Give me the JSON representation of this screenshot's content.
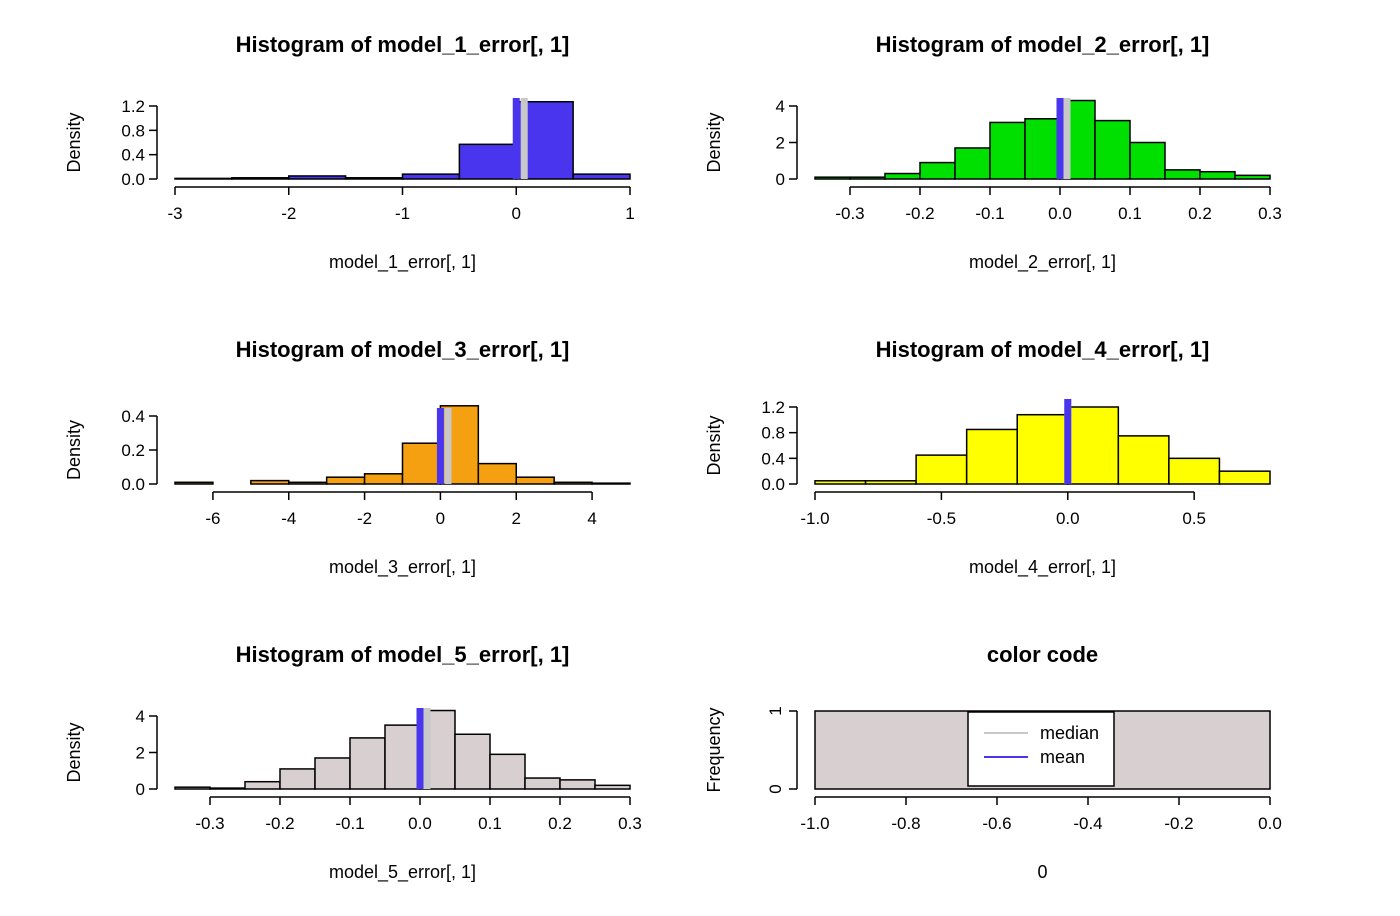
{
  "chart_data": [
    {
      "type": "bar",
      "title": "Histogram of model_1_error[, 1]",
      "xlabel": "model_1_error[, 1]",
      "ylabel": "Density",
      "xlim": [
        -3,
        1
      ],
      "ylim": [
        0,
        1.2
      ],
      "xticks": [
        "-3",
        "-2",
        "-1",
        "0",
        "1"
      ],
      "xtick_values": [
        -3,
        -2,
        -1,
        0,
        1
      ],
      "yticks": [
        "0.0",
        "0.4",
        "0.8",
        "1.2"
      ],
      "ytick_values": [
        0,
        0.4,
        0.8,
        1.2
      ],
      "bin_edges": [
        -3.0,
        -2.5,
        -2.0,
        -1.5,
        -1.0,
        -0.5,
        0.0,
        0.5,
        1.0
      ],
      "values": [
        0.01,
        0.02,
        0.05,
        0.02,
        0.08,
        0.57,
        1.27,
        0.08
      ],
      "fill": "#4a35ee",
      "median": 0.07,
      "mean": 0.0
    },
    {
      "type": "bar",
      "title": "Histogram of model_2_error[, 1]",
      "xlabel": "model_2_error[, 1]",
      "ylabel": "Density",
      "xlim": [
        -0.35,
        0.3
      ],
      "ylim": [
        0,
        4
      ],
      "xticks": [
        "-0.3",
        "-0.2",
        "-0.1",
        "0.0",
        "0.1",
        "0.2",
        "0.3"
      ],
      "xtick_values": [
        -0.3,
        -0.2,
        -0.1,
        0,
        0.1,
        0.2,
        0.3
      ],
      "yticks": [
        "0",
        "2",
        "4"
      ],
      "ytick_values": [
        0,
        2,
        4
      ],
      "bin_edges": [
        -0.35,
        -0.3,
        -0.25,
        -0.2,
        -0.15,
        -0.1,
        -0.05,
        0.0,
        0.05,
        0.1,
        0.15,
        0.2,
        0.25,
        0.3
      ],
      "values": [
        0.1,
        0.1,
        0.3,
        0.9,
        1.7,
        3.1,
        3.3,
        4.3,
        3.2,
        2.0,
        0.5,
        0.4,
        0.2
      ],
      "fill": "#00e000",
      "median": 0.01,
      "mean": 0.0
    },
    {
      "type": "bar",
      "title": "Histogram of model_3_error[, 1]",
      "xlabel": "model_3_error[, 1]",
      "ylabel": "Density",
      "xlim": [
        -7,
        5
      ],
      "ylim": [
        0,
        0.4
      ],
      "xticks": [
        "-6",
        "-4",
        "-2",
        "0",
        "2",
        "4"
      ],
      "xtick_values": [
        -6,
        -4,
        -2,
        0,
        2,
        4
      ],
      "yticks": [
        "0.0",
        "0.2",
        "0.4"
      ],
      "ytick_values": [
        0,
        0.2,
        0.4
      ],
      "bin_edges": [
        -7,
        -6,
        -5,
        -4,
        -3,
        -2,
        -1,
        0,
        1,
        2,
        3,
        4,
        5
      ],
      "values": [
        0.01,
        0.0,
        0.02,
        0.01,
        0.04,
        0.06,
        0.24,
        0.46,
        0.12,
        0.04,
        0.01,
        0.005
      ],
      "fill": "#f5a011",
      "median": 0.2,
      "mean": 0.0
    },
    {
      "type": "bar",
      "title": "Histogram of model_4_error[, 1]",
      "xlabel": "model_4_error[, 1]",
      "ylabel": "Density",
      "xlim": [
        -1.0,
        0.8
      ],
      "ylim": [
        0,
        1.2
      ],
      "xticks": [
        "-1.0",
        "-0.5",
        "0.0",
        "0.5"
      ],
      "xtick_values": [
        -1.0,
        -0.5,
        0.0,
        0.5
      ],
      "yticks": [
        "0.0",
        "0.4",
        "0.8",
        "1.2"
      ],
      "ytick_values": [
        0,
        0.4,
        0.8,
        1.2
      ],
      "bin_edges": [
        -1.0,
        -0.8,
        -0.6,
        -0.4,
        -0.2,
        0.0,
        0.2,
        0.4,
        0.6,
        0.8
      ],
      "values": [
        0.05,
        0.05,
        0.45,
        0.85,
        1.08,
        1.2,
        0.75,
        0.4,
        0.2
      ],
      "fill": "#ffff00",
      "median": 0.0,
      "mean": 0.0
    },
    {
      "type": "bar",
      "title": "Histogram of model_5_error[, 1]",
      "xlabel": "model_5_error[, 1]",
      "ylabel": "Density",
      "xlim": [
        -0.35,
        0.3
      ],
      "ylim": [
        0,
        4
      ],
      "xticks": [
        "-0.3",
        "-0.2",
        "-0.1",
        "0.0",
        "0.1",
        "0.2",
        "0.3"
      ],
      "xtick_values": [
        -0.3,
        -0.2,
        -0.1,
        0,
        0.1,
        0.2,
        0.3
      ],
      "yticks": [
        "0",
        "2",
        "4"
      ],
      "ytick_values": [
        0,
        2,
        4
      ],
      "bin_edges": [
        -0.35,
        -0.3,
        -0.25,
        -0.2,
        -0.15,
        -0.1,
        -0.05,
        0.0,
        0.05,
        0.1,
        0.15,
        0.2,
        0.25,
        0.3
      ],
      "values": [
        0.1,
        0.05,
        0.4,
        1.1,
        1.7,
        2.8,
        3.5,
        4.3,
        3.0,
        1.9,
        0.6,
        0.5,
        0.2
      ],
      "fill": "#d8cfd0",
      "median": 0.01,
      "mean": 0.0
    },
    {
      "type": "bar",
      "title": "color code",
      "xlabel": "0",
      "ylabel": "Frequency",
      "xlim": [
        -1.0,
        0.0
      ],
      "ylim": [
        0,
        1
      ],
      "xticks": [
        "-1.0",
        "-0.8",
        "-0.6",
        "-0.4",
        "-0.2",
        "0.0"
      ],
      "xtick_values": [
        -1.0,
        -0.8,
        -0.6,
        -0.4,
        -0.2,
        0.0
      ],
      "yticks": [
        "0",
        "1"
      ],
      "ytick_values": [
        0,
        1
      ],
      "bin_edges": [
        -1.0,
        0.0
      ],
      "values": [
        1
      ],
      "fill": "#d8cfd0",
      "legend": {
        "position": "center",
        "entries": [
          {
            "label": "median",
            "color": "#c8c8c8"
          },
          {
            "label": "mean",
            "color": "#4a35ee"
          }
        ]
      }
    }
  ],
  "colors": {
    "median_line": "#c8c8c8",
    "mean_line": "#4a35ee"
  }
}
